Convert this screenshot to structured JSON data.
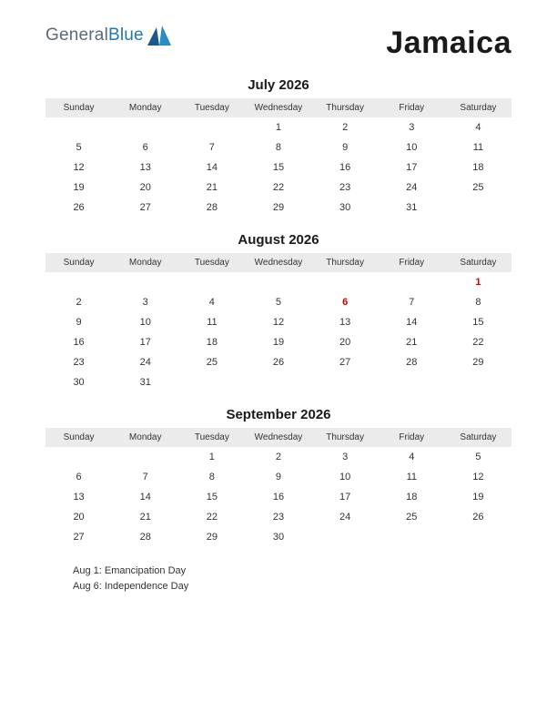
{
  "logo": {
    "part1": "General",
    "part2": "Blue"
  },
  "country": "Jamaica",
  "dayHeaders": [
    "Sunday",
    "Monday",
    "Tuesday",
    "Wednesday",
    "Thursday",
    "Friday",
    "Saturday"
  ],
  "months": [
    {
      "title": "July 2026",
      "weeks": [
        [
          "",
          "",
          "",
          "1",
          "2",
          "3",
          "4"
        ],
        [
          "5",
          "6",
          "7",
          "8",
          "9",
          "10",
          "11"
        ],
        [
          "12",
          "13",
          "14",
          "15",
          "16",
          "17",
          "18"
        ],
        [
          "19",
          "20",
          "21",
          "22",
          "23",
          "24",
          "25"
        ],
        [
          "26",
          "27",
          "28",
          "29",
          "30",
          "31",
          ""
        ]
      ],
      "holidays": []
    },
    {
      "title": "August 2026",
      "weeks": [
        [
          "",
          "",
          "",
          "",
          "",
          "",
          "1"
        ],
        [
          "2",
          "3",
          "4",
          "5",
          "6",
          "7",
          "8"
        ],
        [
          "9",
          "10",
          "11",
          "12",
          "13",
          "14",
          "15"
        ],
        [
          "16",
          "17",
          "18",
          "19",
          "20",
          "21",
          "22"
        ],
        [
          "23",
          "24",
          "25",
          "26",
          "27",
          "28",
          "29"
        ],
        [
          "30",
          "31",
          "",
          "",
          "",
          "",
          ""
        ]
      ],
      "holidays": [
        "1",
        "6"
      ]
    },
    {
      "title": "September 2026",
      "weeks": [
        [
          "",
          "",
          "1",
          "2",
          "3",
          "4",
          "5"
        ],
        [
          "6",
          "7",
          "8",
          "9",
          "10",
          "11",
          "12"
        ],
        [
          "13",
          "14",
          "15",
          "16",
          "17",
          "18",
          "19"
        ],
        [
          "20",
          "21",
          "22",
          "23",
          "24",
          "25",
          "26"
        ],
        [
          "27",
          "28",
          "29",
          "30",
          "",
          "",
          ""
        ]
      ],
      "holidays": []
    }
  ],
  "holidayList": [
    "Aug 1: Emancipation Day",
    "Aug 6: Independence Day"
  ],
  "colors": {
    "headerBg": "#ebebeb",
    "text": "#333333",
    "holiday": "#cc0000",
    "logoGray": "#5b6b78",
    "logoBlue": "#2077b4"
  }
}
